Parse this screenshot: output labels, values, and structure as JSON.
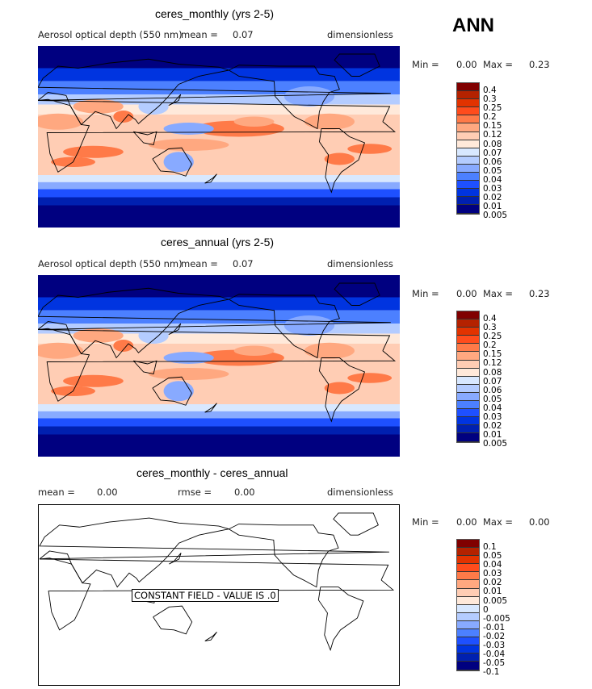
{
  "header": {
    "season": "ANN"
  },
  "palette": [
    "#800000",
    "#b42200",
    "#e23300",
    "#ff4c1c",
    "#ff7a48",
    "#ffa880",
    "#ffcdb4",
    "#ffe9da",
    "#d8e8ff",
    "#b4ccff",
    "#88aaff",
    "#4c80ff",
    "#1e50ff",
    "#0034e0",
    "#0020b0",
    "#000080"
  ],
  "chart_data": [
    {
      "type": "heatmap",
      "title": "ceres_monthly (yrs 2-5)",
      "variable": "Aerosol optical depth (550 nm)",
      "mean_label": "mean =",
      "mean": "0.07",
      "units": "dimensionless",
      "min_label": "Min =",
      "min": "0.00",
      "max_label": "Max =",
      "max": "0.23",
      "levels": [
        "0.4",
        "0.3",
        "0.25",
        "0.2",
        "0.15",
        "0.12",
        "0.08",
        "0.07",
        "0.06",
        "0.05",
        "0.04",
        "0.03",
        "0.02",
        "0.01",
        "0.005"
      ]
    },
    {
      "type": "heatmap",
      "title": "ceres_annual (yrs 2-5)",
      "variable": "Aerosol optical depth (550 nm)",
      "mean_label": "mean =",
      "mean": "0.07",
      "units": "dimensionless",
      "min_label": "Min =",
      "min": "0.00",
      "max_label": "Max =",
      "max": "0.23",
      "levels": [
        "0.4",
        "0.3",
        "0.25",
        "0.2",
        "0.15",
        "0.12",
        "0.08",
        "0.07",
        "0.06",
        "0.05",
        "0.04",
        "0.03",
        "0.02",
        "0.01",
        "0.005"
      ]
    },
    {
      "type": "heatmap",
      "title": "ceres_monthly - ceres_annual",
      "mean_label": "mean =",
      "mean": "0.00",
      "rmse_label": "rmse =",
      "rmse": "0.00",
      "units": "dimensionless",
      "min_label": "Min =",
      "min": "0.00",
      "max_label": "Max =",
      "max": "0.00",
      "note": "CONSTANT FIELD - VALUE IS .0",
      "levels": [
        "0.1",
        "0.05",
        "0.04",
        "0.03",
        "0.02",
        "0.01",
        "0.005",
        "0",
        "-0.005",
        "-0.01",
        "-0.02",
        "-0.03",
        "-0.04",
        "-0.05",
        "-0.1"
      ]
    }
  ]
}
